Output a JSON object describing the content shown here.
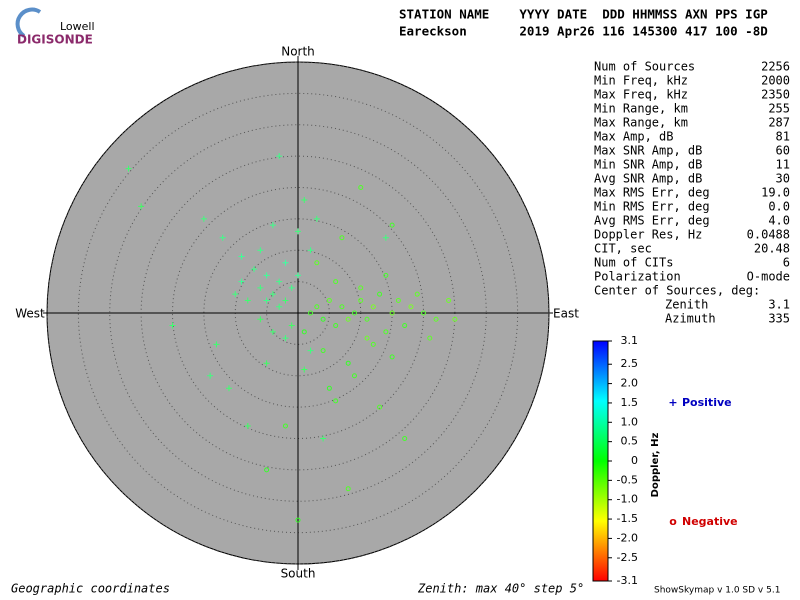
{
  "logo": {
    "top": "Lowell",
    "bottom": "DIGISONDE"
  },
  "header": {
    "labels": "STATION NAME    YYYY DATE  DDD HHMMSS AXN PPS IGP",
    "values": "Eareckson       2019 Apr26 116 145300 417 100 -8D"
  },
  "stats": [
    [
      "Num of Sources",
      "2256"
    ],
    [
      "Min Freq, kHz",
      "2000"
    ],
    [
      "Max Freq, kHz",
      "2350"
    ],
    [
      "Min Range, km",
      "255"
    ],
    [
      "Max Range, km",
      "287"
    ],
    [
      "Max Amp, dB",
      "81"
    ],
    [
      "Max SNR Amp, dB",
      "60"
    ],
    [
      "Min SNR Amp, dB",
      "11"
    ],
    [
      "Avg SNR Amp, dB",
      "30"
    ],
    [
      "Max RMS Err, deg",
      "19.0"
    ],
    [
      "Min RMS Err, deg",
      "0.0"
    ],
    [
      "Avg RMS Err, deg",
      "4.0"
    ],
    [
      "Doppler Res, Hz",
      "0.0488"
    ],
    [
      "CIT, sec",
      "20.48"
    ],
    [
      "Num of CITs",
      "6"
    ],
    [
      "Polarization",
      "O-mode"
    ]
  ],
  "center": {
    "title": "Center of Sources, deg:",
    "rows": [
      [
        "Zenith",
        "3.1"
      ],
      [
        "Azimuth",
        "335"
      ]
    ]
  },
  "footer": {
    "left": "Geographic coordinates",
    "middle": "Zenith: max 40°  step 5°",
    "right": "ShowSkymap v 1.0  SD v 5.1"
  },
  "chart_data": {
    "type": "skymap",
    "compass": {
      "north": "North",
      "south": "South",
      "east": "East",
      "west": "West"
    },
    "rlim": [
      0,
      40
    ],
    "rticks": [
      5,
      10,
      15,
      20,
      25,
      30,
      35,
      40
    ],
    "clim": [
      -3.1,
      3.1
    ],
    "cticks": [
      3.1,
      2.5,
      {
        "value": 2,
        "label": "2.0"
      },
      1.5,
      {
        "value": 1,
        "label": "1.0"
      },
      0.5,
      0,
      -0.5,
      {
        "value": -1,
        "label": "-1.0"
      },
      -1.5,
      {
        "value": -2,
        "label": "-2.0"
      },
      -2.5,
      -3.1
    ],
    "colorbar_label": "Doppler, Hz",
    "series": [
      {
        "name": "Positive",
        "marker": "+",
        "color": "#0000c0",
        "x": [
          -15,
          -12,
          -10,
          -9,
          -8,
          -7,
          -6,
          -6,
          -5,
          -5,
          -4,
          -4,
          -3,
          -3,
          -2,
          -2,
          -1,
          -1,
          0,
          0,
          1,
          2,
          3,
          -20,
          -25,
          -14,
          -11,
          -5,
          2,
          4,
          -8,
          -3,
          14,
          -27,
          -9,
          -6,
          -2,
          1,
          -13,
          -4
        ],
        "y": [
          15,
          12,
          3,
          5,
          2,
          7,
          4,
          -1,
          2,
          6,
          3,
          -3,
          5,
          1,
          8,
          2,
          4,
          -2,
          13,
          6,
          18,
          10,
          15,
          -2,
          17,
          -10,
          -12,
          -8,
          -6,
          -20,
          -18,
          25,
          12,
          23,
          9,
          10,
          -4,
          -9,
          -5,
          14
        ],
        "values": [
          0.5,
          0.6,
          0.5,
          0.7,
          0.4,
          0.6,
          0.5,
          0.3,
          0.6,
          0.7,
          0.5,
          0.4,
          0.6,
          0.5,
          0.8,
          0.4,
          0.6,
          0.3,
          0.5,
          0.7,
          0.4,
          0.6,
          0.5,
          0.4,
          0.3,
          0.5,
          0.4,
          0.3,
          0.5,
          0.4,
          0.3,
          0.6,
          0.5,
          0.4,
          0.7,
          0.6,
          0.5,
          0.3,
          0.4,
          0.6
        ]
      },
      {
        "name": "Negative",
        "marker": "o",
        "color": "#d00000",
        "x": [
          2,
          3,
          4,
          5,
          6,
          7,
          8,
          9,
          10,
          11,
          12,
          13,
          14,
          15,
          16,
          17,
          18,
          20,
          22,
          24,
          4,
          6,
          8,
          10,
          12,
          14,
          5,
          9,
          13,
          17,
          3,
          7,
          11,
          15,
          19,
          1,
          -2,
          -5,
          8,
          15,
          21,
          10,
          6,
          0,
          25
        ],
        "y": [
          0,
          1,
          -1,
          2,
          -2,
          1,
          -1,
          0,
          2,
          -1,
          1,
          3,
          -3,
          0,
          2,
          -2,
          1,
          0,
          -1,
          2,
          -6,
          5,
          -8,
          4,
          -5,
          6,
          -12,
          -10,
          -15,
          -20,
          8,
          12,
          -4,
          -7,
          3,
          -3,
          -18,
          -25,
          -28,
          14,
          -4,
          20,
          -14,
          -33,
          -1
        ],
        "values": [
          -0.2,
          -0.3,
          -0.1,
          -0.4,
          -0.2,
          -0.3,
          -0.5,
          -0.2,
          -0.4,
          -0.3,
          -0.6,
          -0.2,
          -0.3,
          -0.5,
          -0.4,
          -0.2,
          -0.6,
          -0.3,
          -0.4,
          -0.5,
          -0.2,
          -0.3,
          -0.1,
          -0.4,
          -0.3,
          -0.2,
          -0.1,
          -0.2,
          -0.3,
          -0.2,
          -0.4,
          -0.3,
          -0.5,
          -0.2,
          -0.4,
          -0.1,
          -0.2,
          -0.1,
          -0.3,
          -0.2,
          -0.4,
          -0.3,
          -0.2,
          -0.1,
          -0.5
        ]
      }
    ]
  }
}
